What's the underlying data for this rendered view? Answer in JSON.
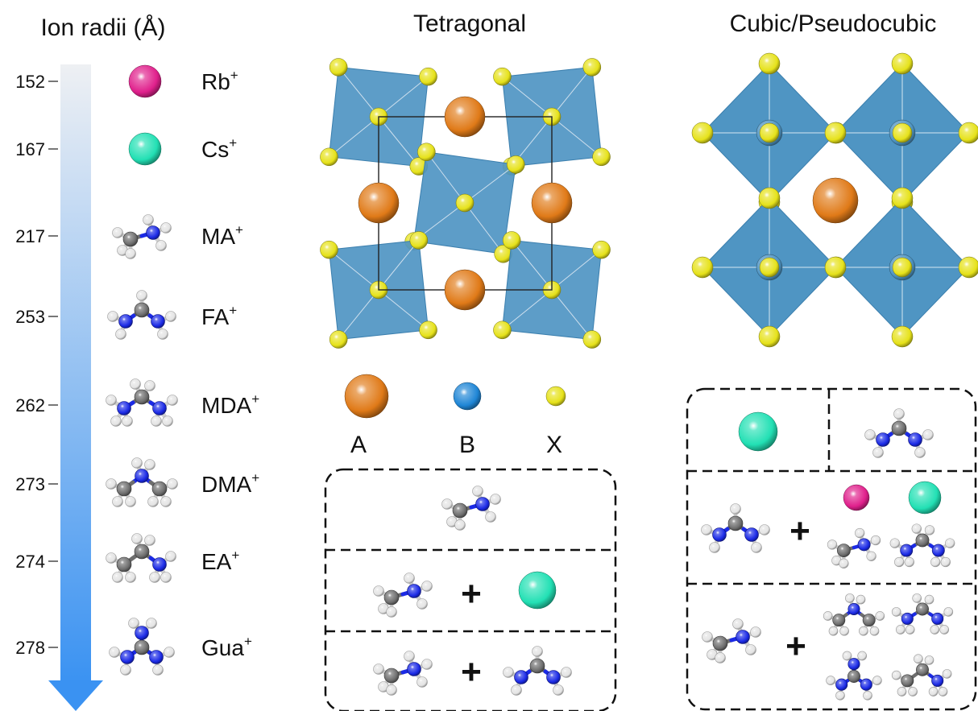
{
  "headers": {
    "ion_radii": "Ion radii (Å)",
    "tetragonal": "Tetragonal",
    "cubic": "Cubic/Pseudocubic"
  },
  "ions": [
    {
      "radius": "152",
      "name": "Rb",
      "charge": "+",
      "kind": "atom",
      "color": "#e0208c"
    },
    {
      "radius": "167",
      "name": "Cs",
      "charge": "+",
      "kind": "atom",
      "color": "#22e0b4"
    },
    {
      "radius": "217",
      "name": "MA",
      "charge": "+",
      "kind": "MA"
    },
    {
      "radius": "253",
      "name": "FA",
      "charge": "+",
      "kind": "FA"
    },
    {
      "radius": "262",
      "name": "MDA",
      "charge": "+",
      "kind": "MDA"
    },
    {
      "radius": "273",
      "name": "DMA",
      "charge": "+",
      "kind": "DMA"
    },
    {
      "radius": "274",
      "name": "EA",
      "charge": "+",
      "kind": "EA"
    },
    {
      "radius": "278",
      "name": "Gua",
      "charge": "+",
      "kind": "Gua"
    }
  ],
  "legend": {
    "a": "A",
    "b": "B",
    "x": "X"
  },
  "plus": "+",
  "colors": {
    "octahedron": "#4f95c3",
    "a_site": "#e07a18",
    "b_site": "#1f86d6",
    "x_site": "#e6e21a",
    "carbon": "#6e6e6e",
    "nitrogen": "#1b2ae6",
    "hydrogen": "#f2f2f2",
    "arrow_top": "#eef0f3",
    "arrow_bottom": "#3a92f2"
  }
}
